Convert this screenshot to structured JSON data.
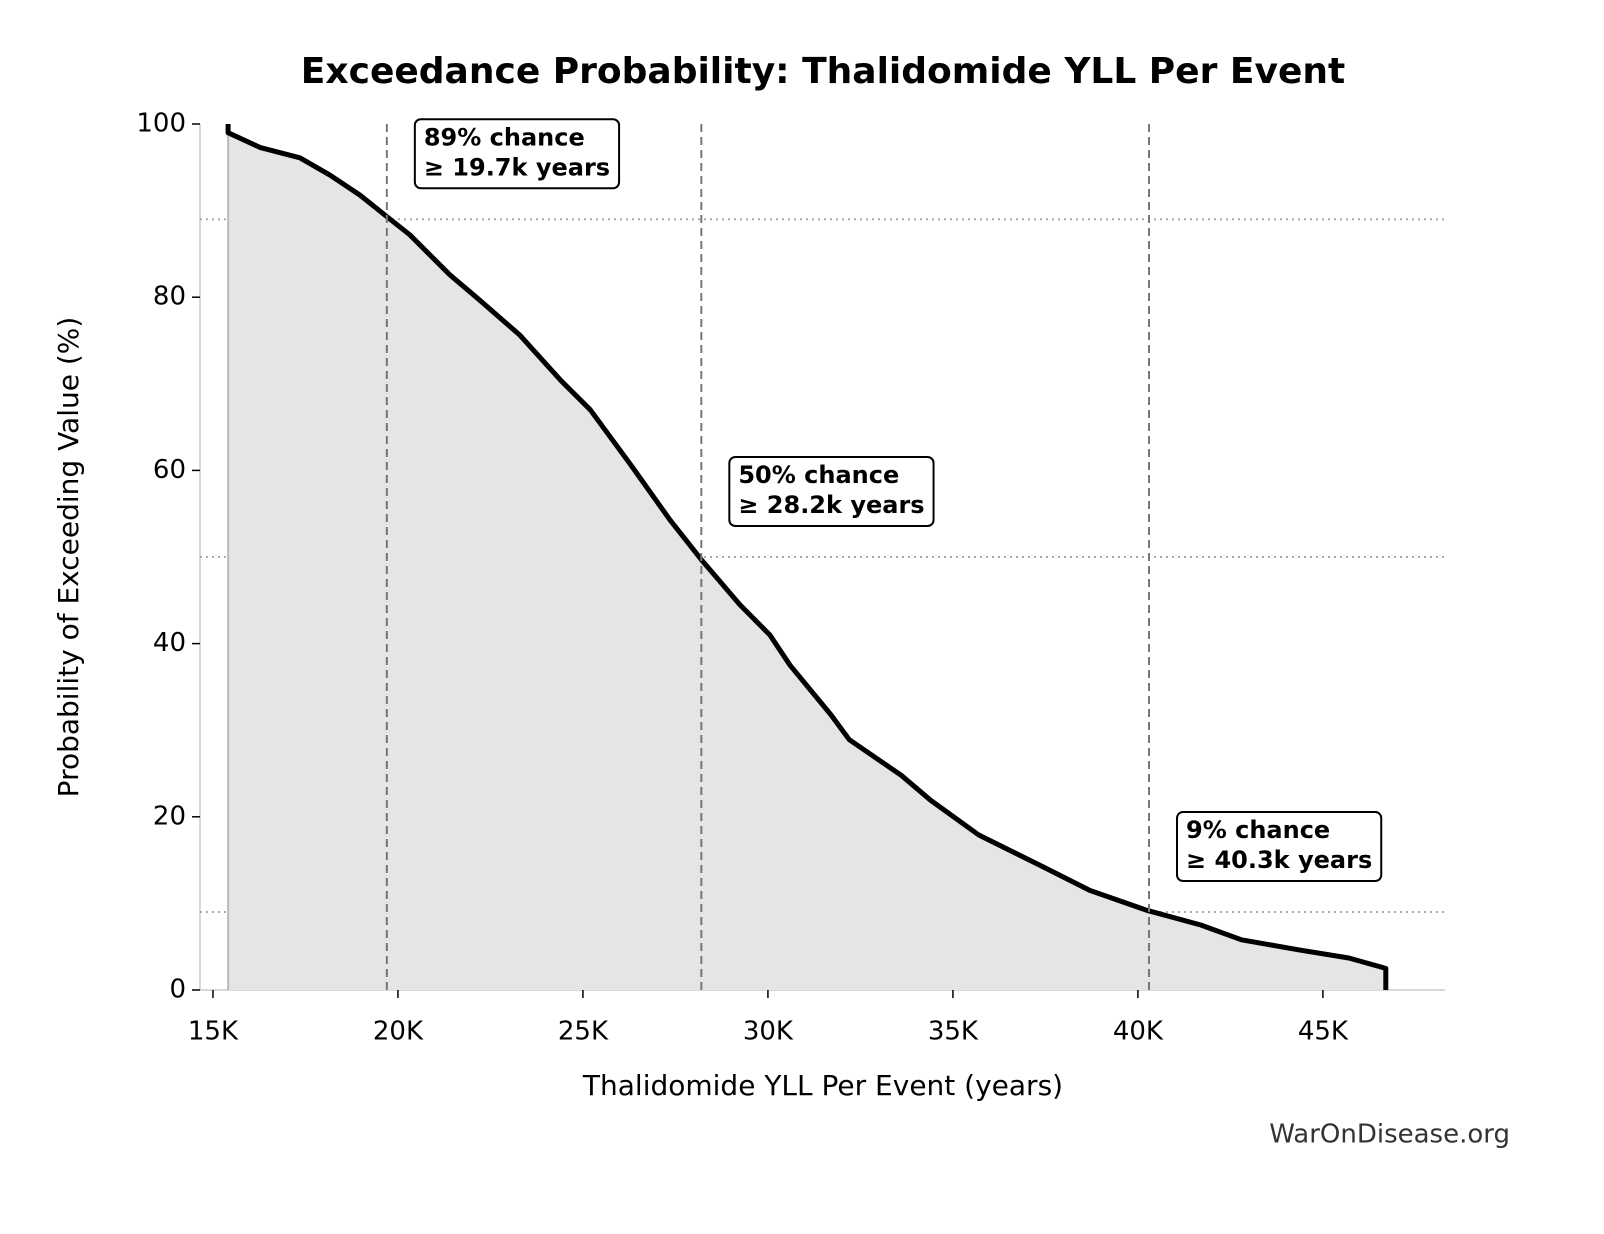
{
  "chart_data": {
    "type": "line",
    "title": "Exceedance Probability: Thalidomide YLL Per Event",
    "x_label": "Thalidomide YLL Per Event (years)",
    "y_label": "Probability of Exceeding Value (%)",
    "footer": "WarOnDisease.org",
    "x": [
      15410,
      15410,
      16270,
      17350,
      18160,
      18970,
      19760,
      20320,
      21400,
      22200,
      23300,
      24400,
      25200,
      26300,
      27350,
      28200,
      29240,
      30050,
      30600,
      31700,
      32200,
      33600,
      34400,
      35700,
      37350,
      38700,
      40240,
      41700,
      42800,
      44400,
      45700,
      46700,
      46700
    ],
    "series": [
      {
        "name": "Exceedance",
        "color": "#000000",
        "fill": "#e5e5e5",
        "values": [
          100,
          99,
          97.3,
          96.1,
          94.1,
          91.8,
          89.1,
          87.2,
          82.6,
          79.7,
          75.6,
          70.4,
          67.0,
          60.6,
          54.3,
          49.7,
          44.5,
          41.0,
          37.5,
          31.8,
          28.9,
          24.8,
          21.9,
          17.9,
          14.4,
          11.5,
          9.2,
          7.5,
          5.8,
          4.6,
          3.7,
          2.5,
          0
        ]
      }
    ],
    "xlim": [
      14650,
      48300
    ],
    "ylim": [
      0,
      100
    ],
    "xticks": [
      {
        "value": 15000,
        "label": "15K"
      },
      {
        "value": 20000,
        "label": "20K"
      },
      {
        "value": 25000,
        "label": "25K"
      },
      {
        "value": 30000,
        "label": "30K"
      },
      {
        "value": 35000,
        "label": "35K"
      },
      {
        "value": 40000,
        "label": "40K"
      },
      {
        "value": 45000,
        "label": "45K"
      }
    ],
    "yticks": [
      0,
      20,
      40,
      60,
      80,
      100
    ],
    "annotations": [
      {
        "x": 19700,
        "y": 89,
        "lines": [
          "89% chance",
          "≥ 19.7k years"
        ]
      },
      {
        "x": 28200,
        "y": 50,
        "lines": [
          "50% chance",
          "≥ 28.2k years"
        ]
      },
      {
        "x": 40300,
        "y": 9,
        "lines": [
          "9% chance",
          "≥ 40.3k years"
        ]
      }
    ]
  }
}
